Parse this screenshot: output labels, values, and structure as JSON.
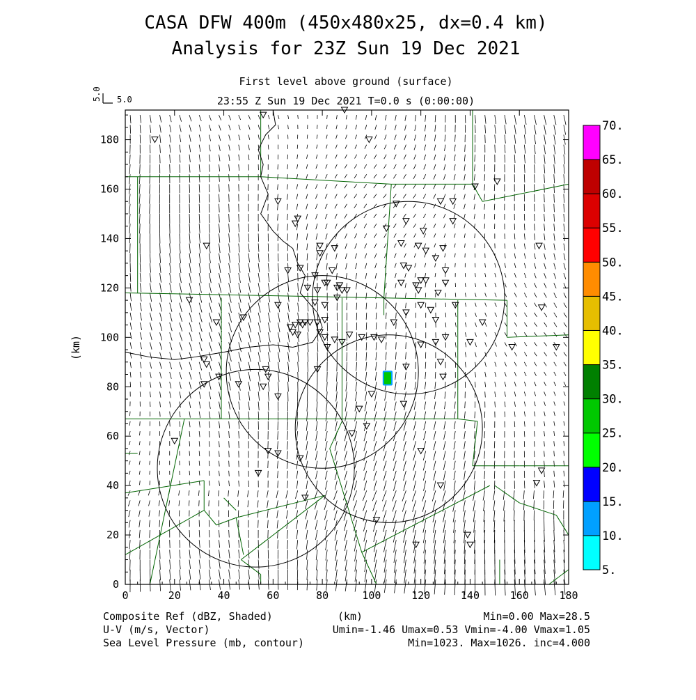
{
  "header": {
    "title_line1": "CASA DFW 400m (450x480x25, dx=0.4 km)",
    "title_line2": "Analysis for 23Z Sun 19 Dec 2021",
    "level": "First level above ground (surface)",
    "time": "23:55 Z Sun 19 Dec 2021    T=0.0 s (0:00:00)",
    "ref_vector_v": "5.0",
    "ref_vector_u": "5.0"
  },
  "footer": {
    "line1_left": "Composite Ref (dBZ, Shaded)",
    "line1_center": "(km)",
    "line1_right": "Min=0.00 Max=28.5",
    "line2_left": "U-V (m/s, Vector)",
    "line2_right": "Umin=-1.46 Umax=0.53 Vmin=-4.00 Vmax=1.05",
    "line3_left": "Sea Level Pressure (mb, contour)",
    "line3_right": "Min=1023. Max=1026. inc=4.000"
  },
  "colorbar": {
    "levels": [
      "5.",
      "10.",
      "15.",
      "20.",
      "25.",
      "30.",
      "35.",
      "40.",
      "45.",
      "50.",
      "55.",
      "60.",
      "65.",
      "70."
    ],
    "colors": [
      "#00ffff",
      "#00a0ff",
      "#0000ff",
      "#00ff00",
      "#00c800",
      "#008000",
      "#ffff00",
      "#e6be00",
      "#ff8c00",
      "#ff0000",
      "#dc0000",
      "#be0000",
      "#ff00ff"
    ]
  },
  "colors": {
    "county_lines": "#006400",
    "contours": "#000000",
    "vectors": "#000000"
  },
  "chart_data": {
    "type": "heatmap",
    "title": "CASA DFW 400m (450x480x25, dx=0.4 km) Analysis for 23Z Sun 19 Dec 2021",
    "xlabel": "(km)",
    "ylabel": "(km)",
    "xlim": [
      0,
      180
    ],
    "ylim": [
      0,
      192
    ],
    "x_ticks": [
      "0",
      "20",
      "40",
      "60",
      "80",
      "100",
      "120",
      "140",
      "160",
      "180"
    ],
    "y_ticks": [
      "0",
      "20",
      "40",
      "60",
      "80",
      "100",
      "120",
      "140",
      "160",
      "180"
    ],
    "grid": false,
    "legend": "colorbar right",
    "reflectivity_cells": [
      {
        "x": 106.5,
        "y": 83.5,
        "value_dbz": 28.5,
        "w": 4,
        "h": 6
      }
    ],
    "radar_range_rings": [
      {
        "x": 115,
        "y": 116,
        "r": 39
      },
      {
        "x": 80,
        "y": 86,
        "r": 39
      },
      {
        "x": 107,
        "y": 63,
        "r": 38
      },
      {
        "x": 53,
        "y": 47,
        "r": 40
      }
    ],
    "stations": [
      [
        12,
        180
      ],
      [
        56,
        190
      ],
      [
        89,
        192
      ],
      [
        99,
        180
      ],
      [
        142,
        161
      ],
      [
        151,
        163
      ],
      [
        133,
        155
      ],
      [
        128,
        155
      ],
      [
        62,
        155
      ],
      [
        70,
        148
      ],
      [
        69,
        146
      ],
      [
        110,
        154
      ],
      [
        106,
        144
      ],
      [
        114,
        147
      ],
      [
        121,
        143
      ],
      [
        133,
        147
      ],
      [
        33,
        137
      ],
      [
        79,
        137
      ],
      [
        85,
        136
      ],
      [
        79,
        134
      ],
      [
        112,
        138
      ],
      [
        119,
        137
      ],
      [
        122,
        135
      ],
      [
        129,
        136
      ],
      [
        126,
        132
      ],
      [
        168,
        137
      ],
      [
        66,
        127
      ],
      [
        71,
        128
      ],
      [
        77,
        125
      ],
      [
        84,
        127
      ],
      [
        113,
        129
      ],
      [
        115,
        128
      ],
      [
        130,
        127
      ],
      [
        81,
        122
      ],
      [
        82,
        122
      ],
      [
        86,
        120
      ],
      [
        87,
        121
      ],
      [
        78,
        119
      ],
      [
        74,
        120
      ],
      [
        88,
        119
      ],
      [
        90,
        119
      ],
      [
        112,
        122
      ],
      [
        118,
        121
      ],
      [
        119,
        119
      ],
      [
        120,
        123
      ],
      [
        122,
        123
      ],
      [
        127,
        118
      ],
      [
        130,
        122
      ],
      [
        26,
        115
      ],
      [
        62,
        113
      ],
      [
        77,
        114
      ],
      [
        81,
        113
      ],
      [
        86,
        116
      ],
      [
        114,
        110
      ],
      [
        120,
        113
      ],
      [
        124,
        111
      ],
      [
        134,
        113
      ],
      [
        169,
        112
      ],
      [
        37,
        106
      ],
      [
        48,
        108
      ],
      [
        67,
        104
      ],
      [
        69,
        105
      ],
      [
        71,
        106
      ],
      [
        72,
        105
      ],
      [
        73,
        106
      ],
      [
        75,
        106
      ],
      [
        78,
        106
      ],
      [
        81,
        107
      ],
      [
        109,
        106
      ],
      [
        126,
        107
      ],
      [
        145,
        106
      ],
      [
        68,
        102
      ],
      [
        70,
        101
      ],
      [
        79,
        102
      ],
      [
        81,
        100
      ],
      [
        85,
        99
      ],
      [
        101,
        100
      ],
      [
        104,
        99
      ],
      [
        120,
        97
      ],
      [
        126,
        98
      ],
      [
        130,
        100
      ],
      [
        140,
        98
      ],
      [
        157,
        96
      ],
      [
        175,
        96
      ],
      [
        32,
        91
      ],
      [
        33,
        89
      ],
      [
        57,
        87
      ],
      [
        78,
        87
      ],
      [
        82,
        96
      ],
      [
        88,
        98
      ],
      [
        91,
        101
      ],
      [
        96,
        100
      ],
      [
        114,
        88
      ],
      [
        128,
        90
      ],
      [
        32,
        81
      ],
      [
        38,
        84
      ],
      [
        46,
        81
      ],
      [
        56,
        80
      ],
      [
        58,
        84
      ],
      [
        62,
        76
      ],
      [
        100,
        77
      ],
      [
        113,
        73
      ],
      [
        129,
        84
      ],
      [
        95,
        71
      ],
      [
        98,
        64
      ],
      [
        92,
        61
      ],
      [
        20,
        58
      ],
      [
        58,
        54
      ],
      [
        62,
        53
      ],
      [
        71,
        51
      ],
      [
        120,
        54
      ],
      [
        54,
        45
      ],
      [
        128,
        40
      ],
      [
        167,
        41
      ],
      [
        169,
        46
      ],
      [
        73,
        35
      ],
      [
        102,
        26
      ],
      [
        139,
        20
      ],
      [
        140,
        16
      ],
      [
        118,
        16
      ]
    ],
    "vector_grid": {
      "spacing_km": 4,
      "u_range": [
        -1.46,
        0.53
      ],
      "v_range": [
        -4.0,
        1.05
      ],
      "ref_scale_ms": 5.0
    }
  }
}
